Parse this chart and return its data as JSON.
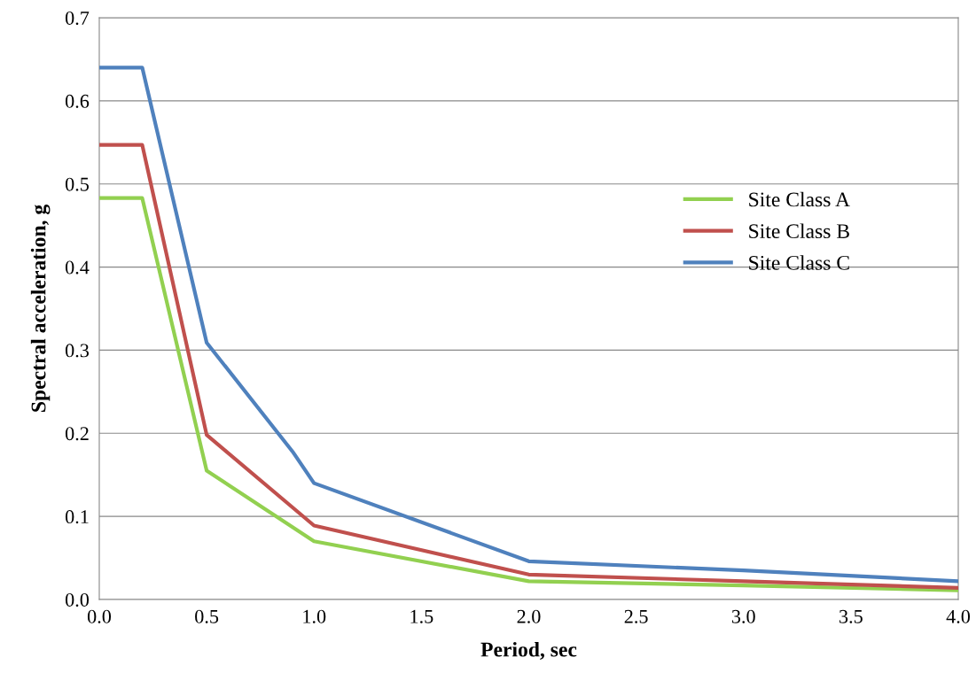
{
  "chart_data": {
    "type": "line",
    "xlabel": "Period, sec",
    "ylabel": "Spectral acceleration, g",
    "xlim": [
      0,
      4
    ],
    "ylim": [
      0,
      0.7
    ],
    "xticks": [
      {
        "value": 0,
        "label": "0.0"
      },
      0.5,
      {
        "value": 1,
        "label": "1.0"
      },
      1.5,
      {
        "value": 2,
        "label": "2.0"
      },
      2.5,
      {
        "value": 3,
        "label": "3.0"
      },
      3.5,
      {
        "value": 4,
        "label": "4.0"
      }
    ],
    "yticks": [
      {
        "value": 0,
        "label": "0.0"
      },
      0.1,
      0.2,
      0.3,
      0.4,
      0.5,
      0.6,
      0.7
    ],
    "grid": "y",
    "legend": "right",
    "marker": "none",
    "line_style": "solid",
    "series": [
      {
        "name": "Site Class A",
        "color": "#92d050",
        "x": [
          0,
          0.2,
          0.5,
          1.0,
          2.0,
          3.0,
          4.0
        ],
        "values": [
          0.483,
          0.483,
          0.155,
          0.07,
          0.022,
          0.017,
          0.011
        ]
      },
      {
        "name": "Site Class B",
        "color": "#c0504d",
        "x": [
          0,
          0.2,
          0.5,
          1.0,
          2.0,
          3.0,
          4.0
        ],
        "values": [
          0.547,
          0.547,
          0.198,
          0.089,
          0.03,
          0.022,
          0.014
        ]
      },
      {
        "name": "Site Class C",
        "color": "#4f81bd",
        "x": [
          0,
          0.2,
          0.5,
          0.9,
          1.0,
          2.0,
          3.0,
          4.0
        ],
        "values": [
          0.64,
          0.64,
          0.309,
          0.178,
          0.14,
          0.046,
          0.035,
          0.022
        ]
      }
    ]
  }
}
